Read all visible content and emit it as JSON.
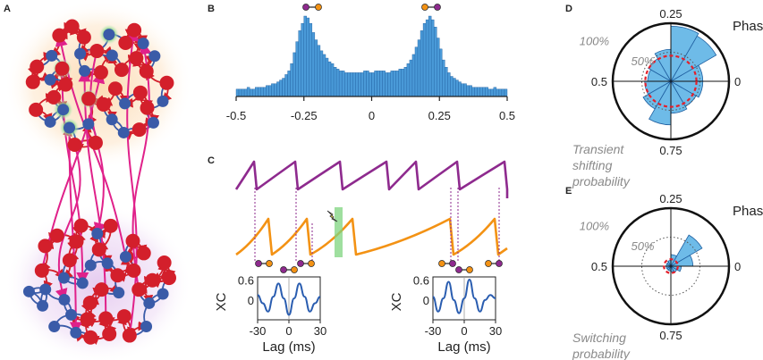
{
  "panels": {
    "a": "A",
    "b": "B",
    "c": "C",
    "d": "D",
    "e": "E"
  },
  "colors": {
    "excitatory": "#d31f2b",
    "inhibitory": "#3a5ba8",
    "long_range": "#e0218a",
    "histogram": "#4a9ad8",
    "purple_trace": "#8e2a8e",
    "orange_trace": "#f39214",
    "rose_fill": "#6ebbe8",
    "threshold": "#e3202b"
  },
  "chart_data": [
    {
      "panel": "B",
      "type": "bar",
      "title": "",
      "xlabel": "",
      "ylabel": "",
      "xlim": [
        -0.5,
        0.5
      ],
      "xticks": [
        "-0.5",
        "-0.25",
        "0",
        "0.25",
        "0.5"
      ],
      "bin_count": 100,
      "values": [
        4,
        4,
        4,
        4,
        5,
        4,
        4,
        5,
        5,
        5,
        5,
        6,
        6,
        7,
        7,
        8,
        9,
        10,
        12,
        14,
        18,
        24,
        30,
        36,
        40,
        44,
        43,
        40,
        35,
        31,
        28,
        25,
        23,
        21,
        19,
        18,
        16,
        15,
        14,
        14,
        13,
        13,
        13,
        13,
        13,
        13,
        13,
        14,
        14,
        13,
        13,
        14,
        14,
        14,
        14,
        13,
        13,
        14,
        14,
        14,
        15,
        15,
        16,
        18,
        20,
        23,
        27,
        31,
        36,
        40,
        42,
        44,
        42,
        38,
        32,
        26,
        20,
        16,
        13,
        11,
        10,
        9,
        8,
        7,
        7,
        6,
        6,
        5,
        5,
        5,
        5,
        5,
        5,
        4,
        4,
        5,
        4,
        4,
        4,
        4
      ]
    },
    {
      "panel": "C-left",
      "type": "line",
      "title": "",
      "xlabel": "Lag (ms)",
      "ylabel": "XC",
      "xticks": [
        "-30",
        "0",
        "30"
      ],
      "yticks": [
        "0",
        "0.6"
      ],
      "xlim": [
        -30,
        30
      ],
      "ylim": [
        -0.6,
        0.7
      ],
      "x": [
        -30,
        -25,
        -20,
        -15,
        -10,
        -5,
        0,
        5,
        10,
        15,
        20,
        25,
        30
      ],
      "values": [
        0.15,
        -0.1,
        -0.35,
        0.1,
        0.5,
        0.05,
        -0.45,
        0.05,
        0.5,
        0.1,
        -0.35,
        -0.1,
        0.1
      ]
    },
    {
      "panel": "C-right",
      "type": "line",
      "title": "",
      "xlabel": "Lag (ms)",
      "ylabel": "XC",
      "xticks": [
        "-30",
        "0",
        "30"
      ],
      "yticks": [
        "0",
        "0.6"
      ],
      "xlim": [
        -30,
        30
      ],
      "ylim": [
        -0.6,
        0.7
      ],
      "x": [
        -30,
        -25,
        -20,
        -15,
        -10,
        -5,
        0,
        5,
        10,
        15,
        20,
        25,
        30
      ],
      "values": [
        0.1,
        -0.35,
        0.05,
        0.55,
        0.0,
        -0.4,
        0.05,
        0.62,
        0.05,
        -0.35,
        0.0,
        0.15,
        0.05
      ]
    },
    {
      "panel": "D",
      "type": "polar",
      "title": "Phase",
      "ticks": {
        "top": "0.25",
        "left": "0.5",
        "right": "0",
        "bottom": "0.75"
      },
      "ring_labels": [
        "100%",
        "50%"
      ],
      "caption": [
        "Transient",
        "shifting",
        "probability"
      ],
      "sector_count": 12,
      "values": [
        0.55,
        0.9,
        0.95,
        0.55,
        0.45,
        0.4,
        0.45,
        0.55,
        0.75,
        0.55,
        0.5,
        0.55
      ]
    },
    {
      "panel": "E",
      "type": "polar",
      "title": "Phase",
      "ticks": {
        "top": "0.25",
        "left": "0.5",
        "right": "0",
        "bottom": "0.75"
      },
      "ring_labels": [
        "100%",
        "50%"
      ],
      "caption": [
        "Switching",
        "probability"
      ],
      "sector_count": 12,
      "values": [
        0.38,
        0.62,
        0.2,
        0.1,
        0.08,
        0.08,
        0.08,
        0.08,
        0.08,
        0.1,
        0.12,
        0.18
      ]
    }
  ]
}
